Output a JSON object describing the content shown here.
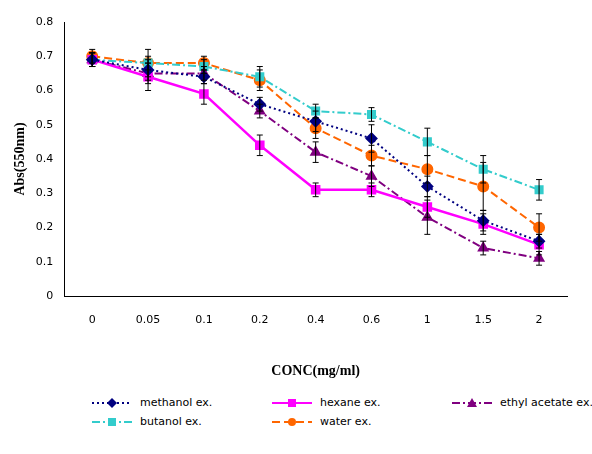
{
  "chart_data": {
    "type": "line",
    "x_label": "CONC(mg/ml)",
    "y_label": "Abs(550nm)",
    "categories": [
      "0",
      "0.05",
      "0.1",
      "0.2",
      "0.4",
      "0.6",
      "1",
      "1.5",
      "2"
    ],
    "ylim": [
      0,
      0.8
    ],
    "yticks": [
      0,
      0.1,
      0.2,
      0.3,
      0.4,
      0.5,
      0.6,
      0.7,
      0.8
    ],
    "grid": false,
    "legend": "bottom",
    "series": [
      {
        "name": "methanol ex.",
        "color": "#000080",
        "marker": "diamond",
        "line_style": "dotted",
        "values": [
          0.69,
          0.66,
          0.64,
          0.56,
          0.51,
          0.46,
          0.32,
          0.22,
          0.16
        ],
        "error": [
          0.02,
          0.03,
          0.02,
          0.02,
          0.03,
          0.04,
          0.03,
          0.03,
          0.02
        ]
      },
      {
        "name": "hexane ex.",
        "color": "#ff00ff",
        "marker": "square",
        "line_style": "solid",
        "values": [
          0.69,
          0.64,
          0.59,
          0.44,
          0.31,
          0.31,
          0.26,
          0.21,
          0.15
        ],
        "error": [
          0.02,
          0.04,
          0.03,
          0.03,
          0.02,
          0.02,
          0.03,
          0.03,
          0.03
        ]
      },
      {
        "name": "ethyl acetate ex.",
        "color": "#800080",
        "marker": "triangle",
        "line_style": "dashdot",
        "values": [
          0.69,
          0.65,
          0.65,
          0.54,
          0.42,
          0.35,
          0.23,
          0.14,
          0.11
        ],
        "error": [
          0.02,
          0.03,
          0.02,
          0.02,
          0.03,
          0.03,
          0.05,
          0.02,
          0.02
        ]
      },
      {
        "name": "butanol ex.",
        "color": "#33cccc",
        "marker": "square",
        "line_style": "dashdot",
        "values": [
          0.69,
          0.68,
          0.67,
          0.64,
          0.54,
          0.53,
          0.45,
          0.37,
          0.31
        ],
        "error": [
          0.02,
          0.04,
          0.02,
          0.03,
          0.02,
          0.02,
          0.04,
          0.04,
          0.03
        ]
      },
      {
        "name": "water ex.",
        "color": "#ff6600",
        "marker": "circle",
        "line_style": "dashed",
        "values": [
          0.7,
          0.68,
          0.68,
          0.63,
          0.49,
          0.41,
          0.37,
          0.32,
          0.2
        ],
        "error": [
          0.02,
          0.02,
          0.02,
          0.03,
          0.03,
          0.03,
          0.04,
          0.07,
          0.04
        ]
      }
    ]
  }
}
